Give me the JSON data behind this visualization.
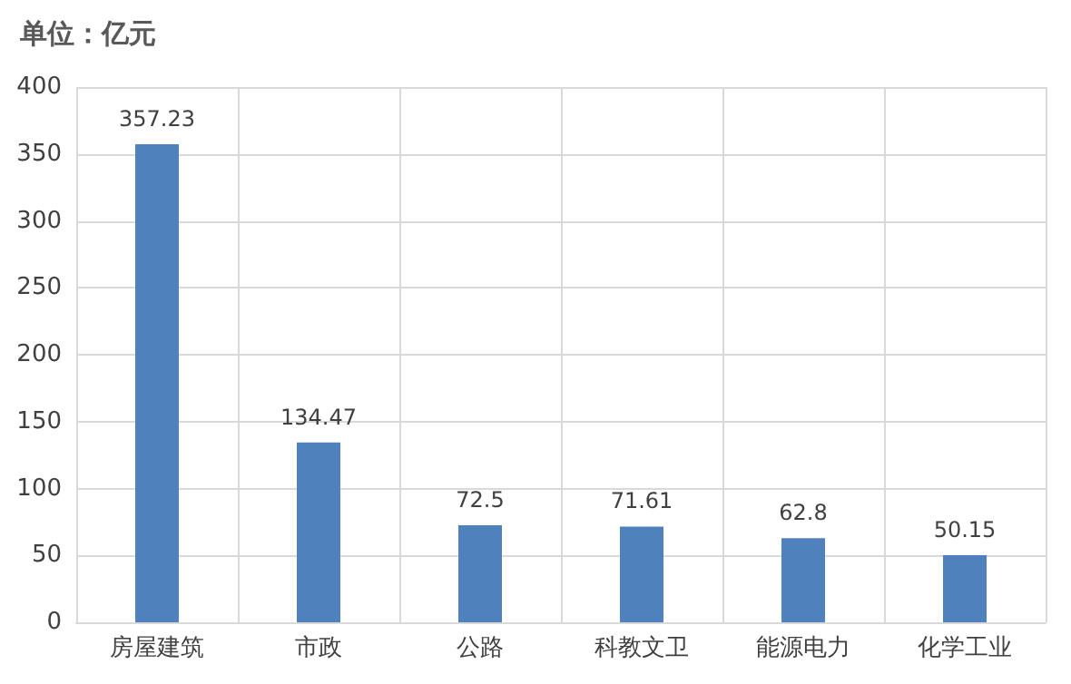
{
  "chart_data": {
    "type": "bar",
    "ylabel": "单位：亿元",
    "categories": [
      "房屋建筑",
      "市政",
      "公路",
      "科教文卫",
      "能源电力",
      "化学工业"
    ],
    "values": [
      357.23,
      134.47,
      72.5,
      71.61,
      62.8,
      50.15
    ],
    "color": "#4f81bd",
    "ylim": [
      0,
      400
    ],
    "yticks": [
      0,
      50,
      100,
      150,
      200,
      250,
      300,
      350,
      400
    ],
    "grid": true,
    "data_labels": true
  }
}
